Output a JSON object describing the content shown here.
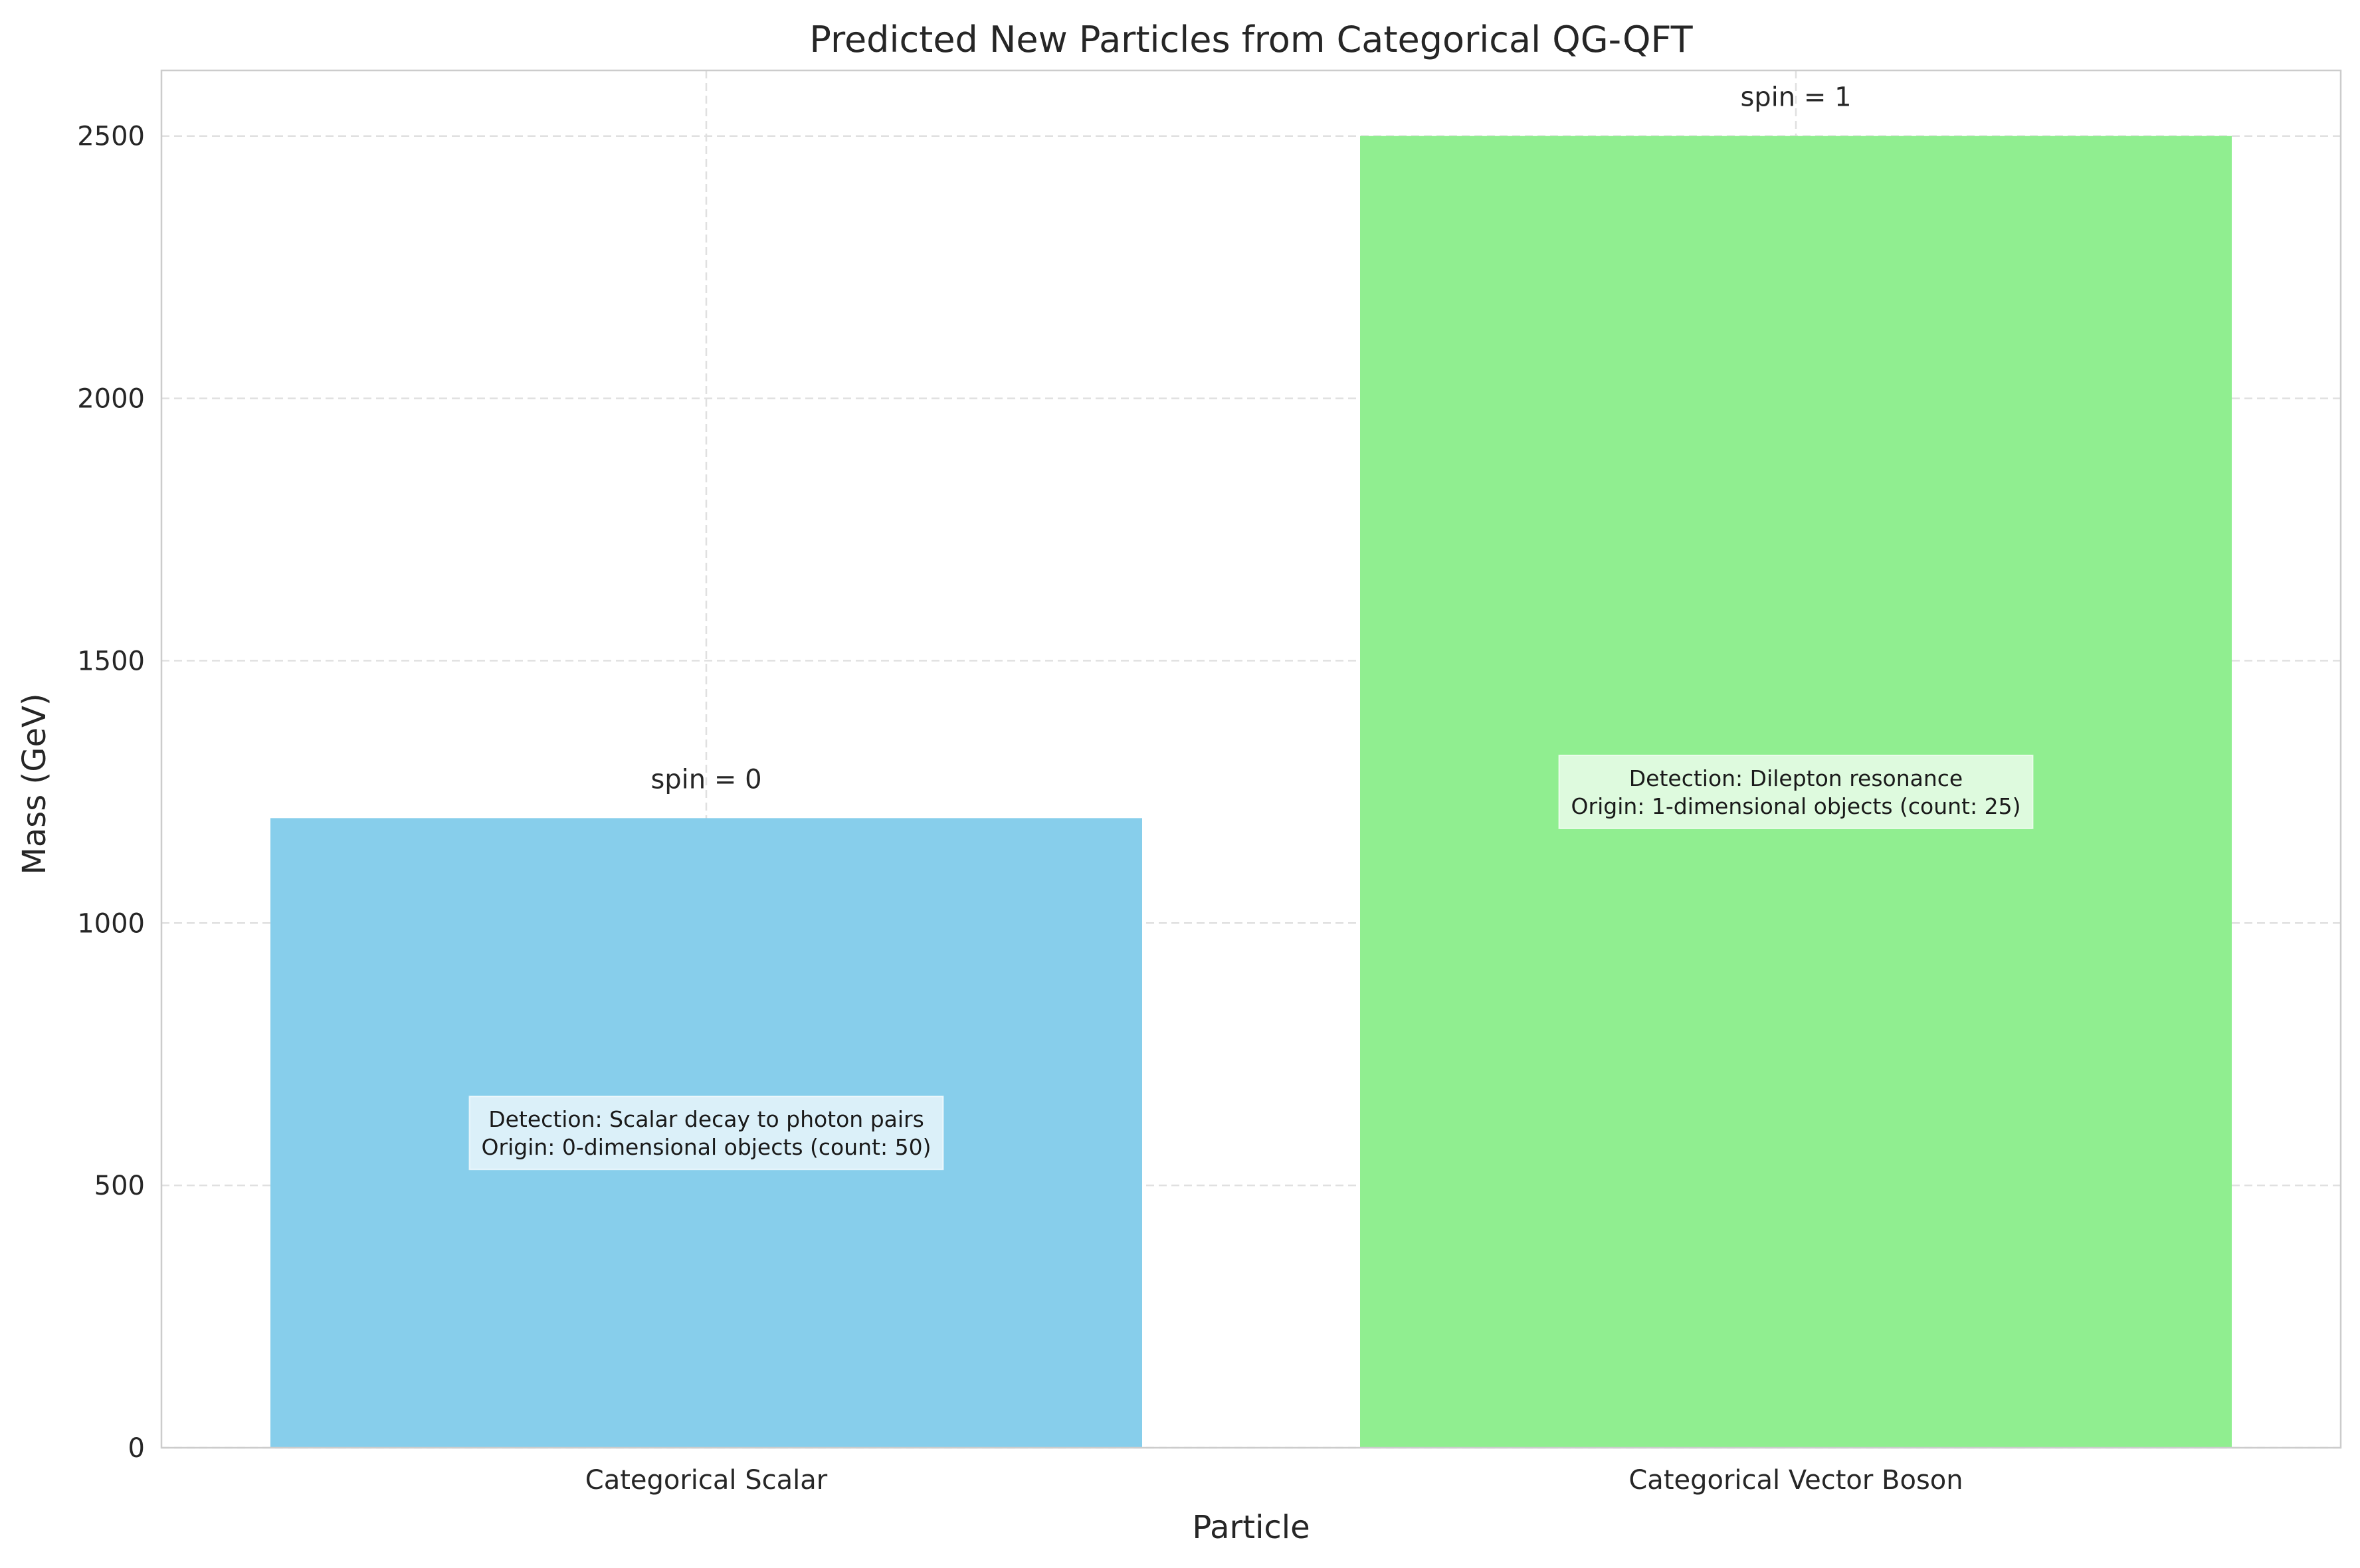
{
  "chart_data": {
    "type": "bar",
    "title": "Predicted New Particles from Categorical QG-QFT",
    "xlabel": "Particle",
    "ylabel": "Mass (GeV)",
    "categories": [
      "Categorical Scalar",
      "Categorical Vector Boson"
    ],
    "values": [
      1200,
      2500
    ],
    "colors": [
      "#87ceeb",
      "#90ee90"
    ],
    "ylim": [
      0,
      2625
    ],
    "yticks": [
      0,
      500,
      1000,
      1500,
      2000,
      2500
    ],
    "grid": true,
    "bar_labels": [
      "spin = 0",
      "spin = 1"
    ],
    "annotations": [
      {
        "category": "Categorical Scalar",
        "lines": [
          "Detection: Scalar decay to photon pairs",
          "Origin: 0-dimensional objects (count: 50)"
        ]
      },
      {
        "category": "Categorical Vector Boson",
        "lines": [
          "Detection: Dilepton resonance",
          "Origin: 1-dimensional objects (count: 25)"
        ]
      }
    ]
  }
}
